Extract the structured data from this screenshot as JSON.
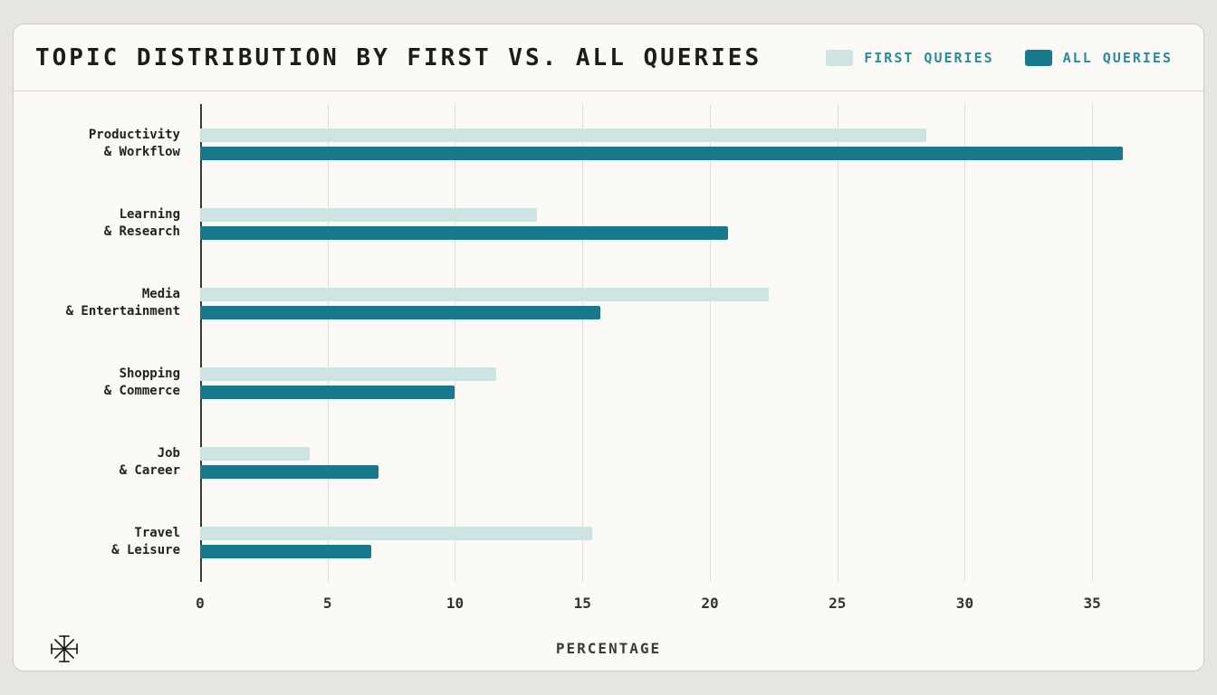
{
  "chart_data": {
    "type": "bar",
    "orientation": "horizontal",
    "title": "TOPIC DISTRIBUTION BY FIRST VS. ALL QUERIES",
    "xlabel": "PERCENTAGE",
    "categories": [
      "Productivity & Workflow",
      "Learning & Research",
      "Media & Entertainment",
      "Shopping & Commerce",
      "Job & Career",
      "Travel & Leisure"
    ],
    "label_lines": [
      [
        "Productivity",
        "& Workflow"
      ],
      [
        "Learning",
        "& Research"
      ],
      [
        "Media",
        "& Entertainment"
      ],
      [
        "Shopping",
        "& Commerce"
      ],
      [
        "Job",
        "& Career"
      ],
      [
        "Travel",
        "& Leisure"
      ]
    ],
    "series": [
      {
        "name": "FIRST QUERIES",
        "color": "#cde4e3",
        "values": [
          28.5,
          13.2,
          22.3,
          11.6,
          4.3,
          15.4
        ]
      },
      {
        "name": "ALL QUERIES",
        "color": "#17798a",
        "values": [
          36.2,
          20.7,
          15.7,
          10.0,
          7.0,
          6.7
        ]
      }
    ],
    "xticks": [
      0,
      5,
      10,
      15,
      20,
      25,
      30,
      35
    ],
    "xmax": 37.8,
    "grid": "vertical",
    "legend_position": "top-right",
    "accent_color": "#2b8a9d",
    "background_color": "#fbfaf7"
  }
}
